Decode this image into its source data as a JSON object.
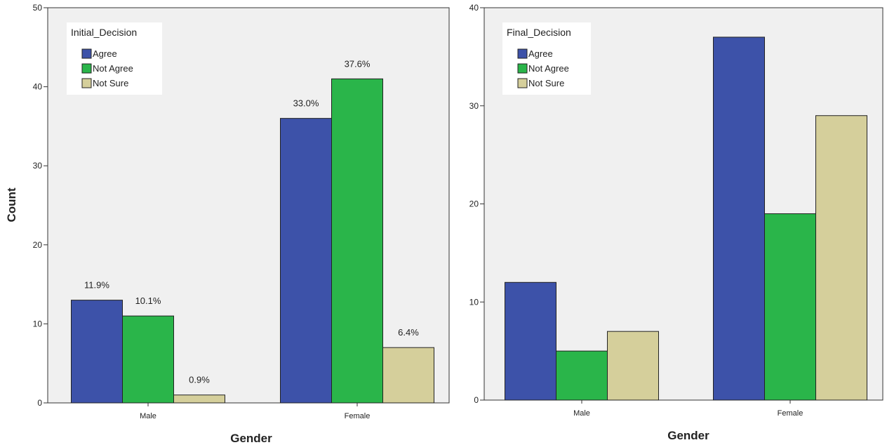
{
  "colors": {
    "agree": "#3d52a9",
    "not_agree": "#2ab54a",
    "not_sure": "#d5cf9b",
    "plot_background": "#f0f0f0"
  },
  "chart_data": [
    {
      "type": "bar",
      "xlabel": "Gender",
      "ylabel": "Count",
      "ylim": [
        0,
        50
      ],
      "yticks": [
        0,
        10,
        20,
        30,
        40,
        50
      ],
      "categories": [
        "Male",
        "Female"
      ],
      "legend_title": "Initial_Decision",
      "legend_position": "top-left",
      "series": [
        {
          "name": "Agree",
          "values": [
            13,
            36
          ],
          "labels": [
            "11.9%",
            "33.0%"
          ]
        },
        {
          "name": "Not Agree",
          "values": [
            11,
            41
          ],
          "labels": [
            "10.1%",
            "37.6%"
          ]
        },
        {
          "name": "Not Sure",
          "values": [
            1,
            7
          ],
          "labels": [
            "0.9%",
            "6.4%"
          ]
        }
      ]
    },
    {
      "type": "bar",
      "xlabel": "Gender",
      "ylabel": "",
      "ylim": [
        0,
        40
      ],
      "yticks": [
        0,
        10,
        20,
        30,
        40
      ],
      "categories": [
        "Male",
        "Female"
      ],
      "legend_title": "Final_Decision",
      "legend_position": "top-left",
      "series": [
        {
          "name": "Agree",
          "values": [
            12,
            37
          ]
        },
        {
          "name": "Not Agree",
          "values": [
            5,
            19
          ]
        },
        {
          "name": "Not Sure",
          "values": [
            7,
            29
          ]
        }
      ]
    }
  ]
}
